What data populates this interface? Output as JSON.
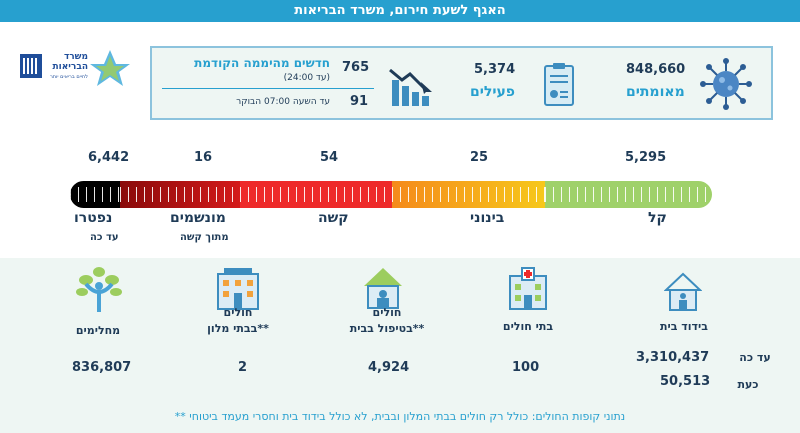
{
  "header": {
    "title": "האגף לשעת חירום, משרד הבריאות"
  },
  "logo": {
    "line1": "משרד",
    "line2": "הבריאות",
    "line3": "לחיים בריאים יותר"
  },
  "summary": {
    "confirmed": {
      "value": "848,660",
      "label": "מאומתים"
    },
    "active": {
      "value": "5,374",
      "label": "פעילים"
    },
    "new_cases": {
      "title": "חדשים מהיממה הקודמת",
      "range_note": "(עד 24:00)",
      "range_value": "765",
      "until_note": "עד השעה 07:00 הבוקר",
      "until_value": "91"
    }
  },
  "severity": {
    "mild": {
      "value": "5,295",
      "label": "קל"
    },
    "moderate": {
      "value": "25",
      "label": "בינוני"
    },
    "severe": {
      "value": "54",
      "label": "קשה"
    },
    "ventilated": {
      "value": "16",
      "label": "מונשמים",
      "sub": "מתוך קשה"
    },
    "deceased": {
      "value": "6,442",
      "label": "נפטרו",
      "sub": "עד כה"
    },
    "colors": {
      "mild": "#9fd16a",
      "moderate": "#f4b41b",
      "severe": "#ee2a2a",
      "ventilated": "#b10d0d",
      "deceased": "#000000"
    }
  },
  "breakdown": {
    "home_isolation": {
      "label": "בידוד בית",
      "to_date_label": "עד כה",
      "to_date": "3,310,437",
      "now_label": "כעת",
      "now": "50,513"
    },
    "hospitals": {
      "label": "בתי חולים",
      "value": "100"
    },
    "home_care": {
      "label_1": "חולים",
      "label_2": "בטיפול בבית**",
      "value": "4,924"
    },
    "hotels": {
      "label_1": "חולים",
      "label_2": "בבתי מלון**",
      "value": "2"
    },
    "recovered": {
      "label": "מחלימים",
      "value": "836,807"
    }
  },
  "footnote": "** נתוני קופות החולים: כולל רק חולים בבתי המלון ובבית, לא כולל בידוד בית וחסרי מעמד ביטוחי"
}
